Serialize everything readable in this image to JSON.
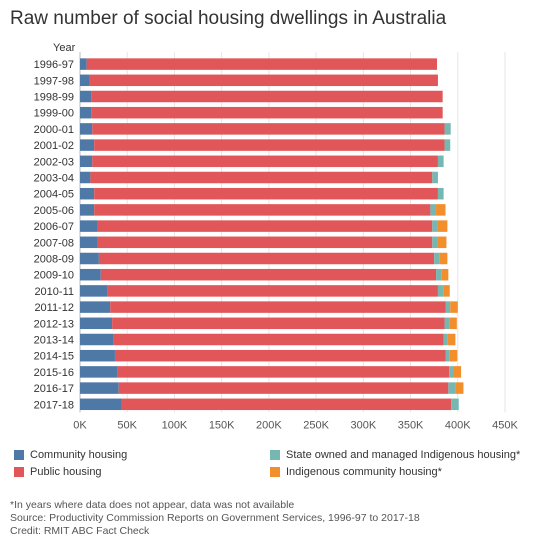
{
  "title": "Raw number of social housing dwellings in Australia",
  "colors": {
    "Community housing": "#4e79a7",
    "Public housing": "#e15759",
    "State owned and managed Indigenous housing*": "#76b7b2",
    "Indigenous community housing*": "#f28e2b"
  },
  "notes": [
    "*In years where data does not appear, data was not available",
    "Source: Productivity Commission Reports on Government Services, 1996-97 to 2017-18",
    "Credit: RMIT ABC Fact Check"
  ],
  "chart_data": {
    "type": "bar",
    "orientation": "horizontal",
    "stacked": true,
    "ylabel": "Year",
    "xlim": [
      0,
      450000
    ],
    "xticks": [
      "0K",
      "50K",
      "100K",
      "150K",
      "200K",
      "250K",
      "300K",
      "350K",
      "400K",
      "450K"
    ],
    "grid": true,
    "legend_position": "bottom",
    "categories": [
      "1996-97",
      "1997-98",
      "1998-99",
      "1999-00",
      "2000-01",
      "2001-02",
      "2002-03",
      "2003-04",
      "2004-05",
      "2005-06",
      "2006-07",
      "2007-08",
      "2008-09",
      "2009-10",
      "2010-11",
      "2011-12",
      "2012-13",
      "2013-14",
      "2014-15",
      "2015-16",
      "2016-17",
      "2017-18"
    ],
    "series": [
      {
        "name": "Community housing",
        "values": [
          7000,
          10000,
          12000,
          12000,
          13000,
          15000,
          13000,
          11000,
          15000,
          15000,
          18000,
          18000,
          20000,
          22000,
          29000,
          32000,
          34000,
          35000,
          37000,
          40000,
          41000,
          44000
        ]
      },
      {
        "name": "Public housing",
        "values": [
          371000,
          369000,
          372000,
          372000,
          373000,
          371000,
          366000,
          362000,
          364000,
          356000,
          355000,
          355000,
          355000,
          355000,
          350000,
          355000,
          352000,
          350000,
          350000,
          351000,
          349000,
          349000
        ]
      },
      {
        "name": "State owned and managed Indigenous housing*",
        "values": [
          0,
          0,
          0,
          0,
          6500,
          6000,
          6000,
          6000,
          6000,
          6000,
          6000,
          6000,
          6000,
          6000,
          5500,
          5000,
          5000,
          4500,
          4500,
          4500,
          8000,
          8000
        ]
      },
      {
        "name": "Indigenous community housing*",
        "values": [
          0,
          0,
          0,
          0,
          0,
          0,
          0,
          0,
          0,
          10000,
          10000,
          9000,
          8000,
          7000,
          7000,
          8000,
          8000,
          8000,
          8000,
          8000,
          8000,
          0
        ]
      }
    ]
  }
}
